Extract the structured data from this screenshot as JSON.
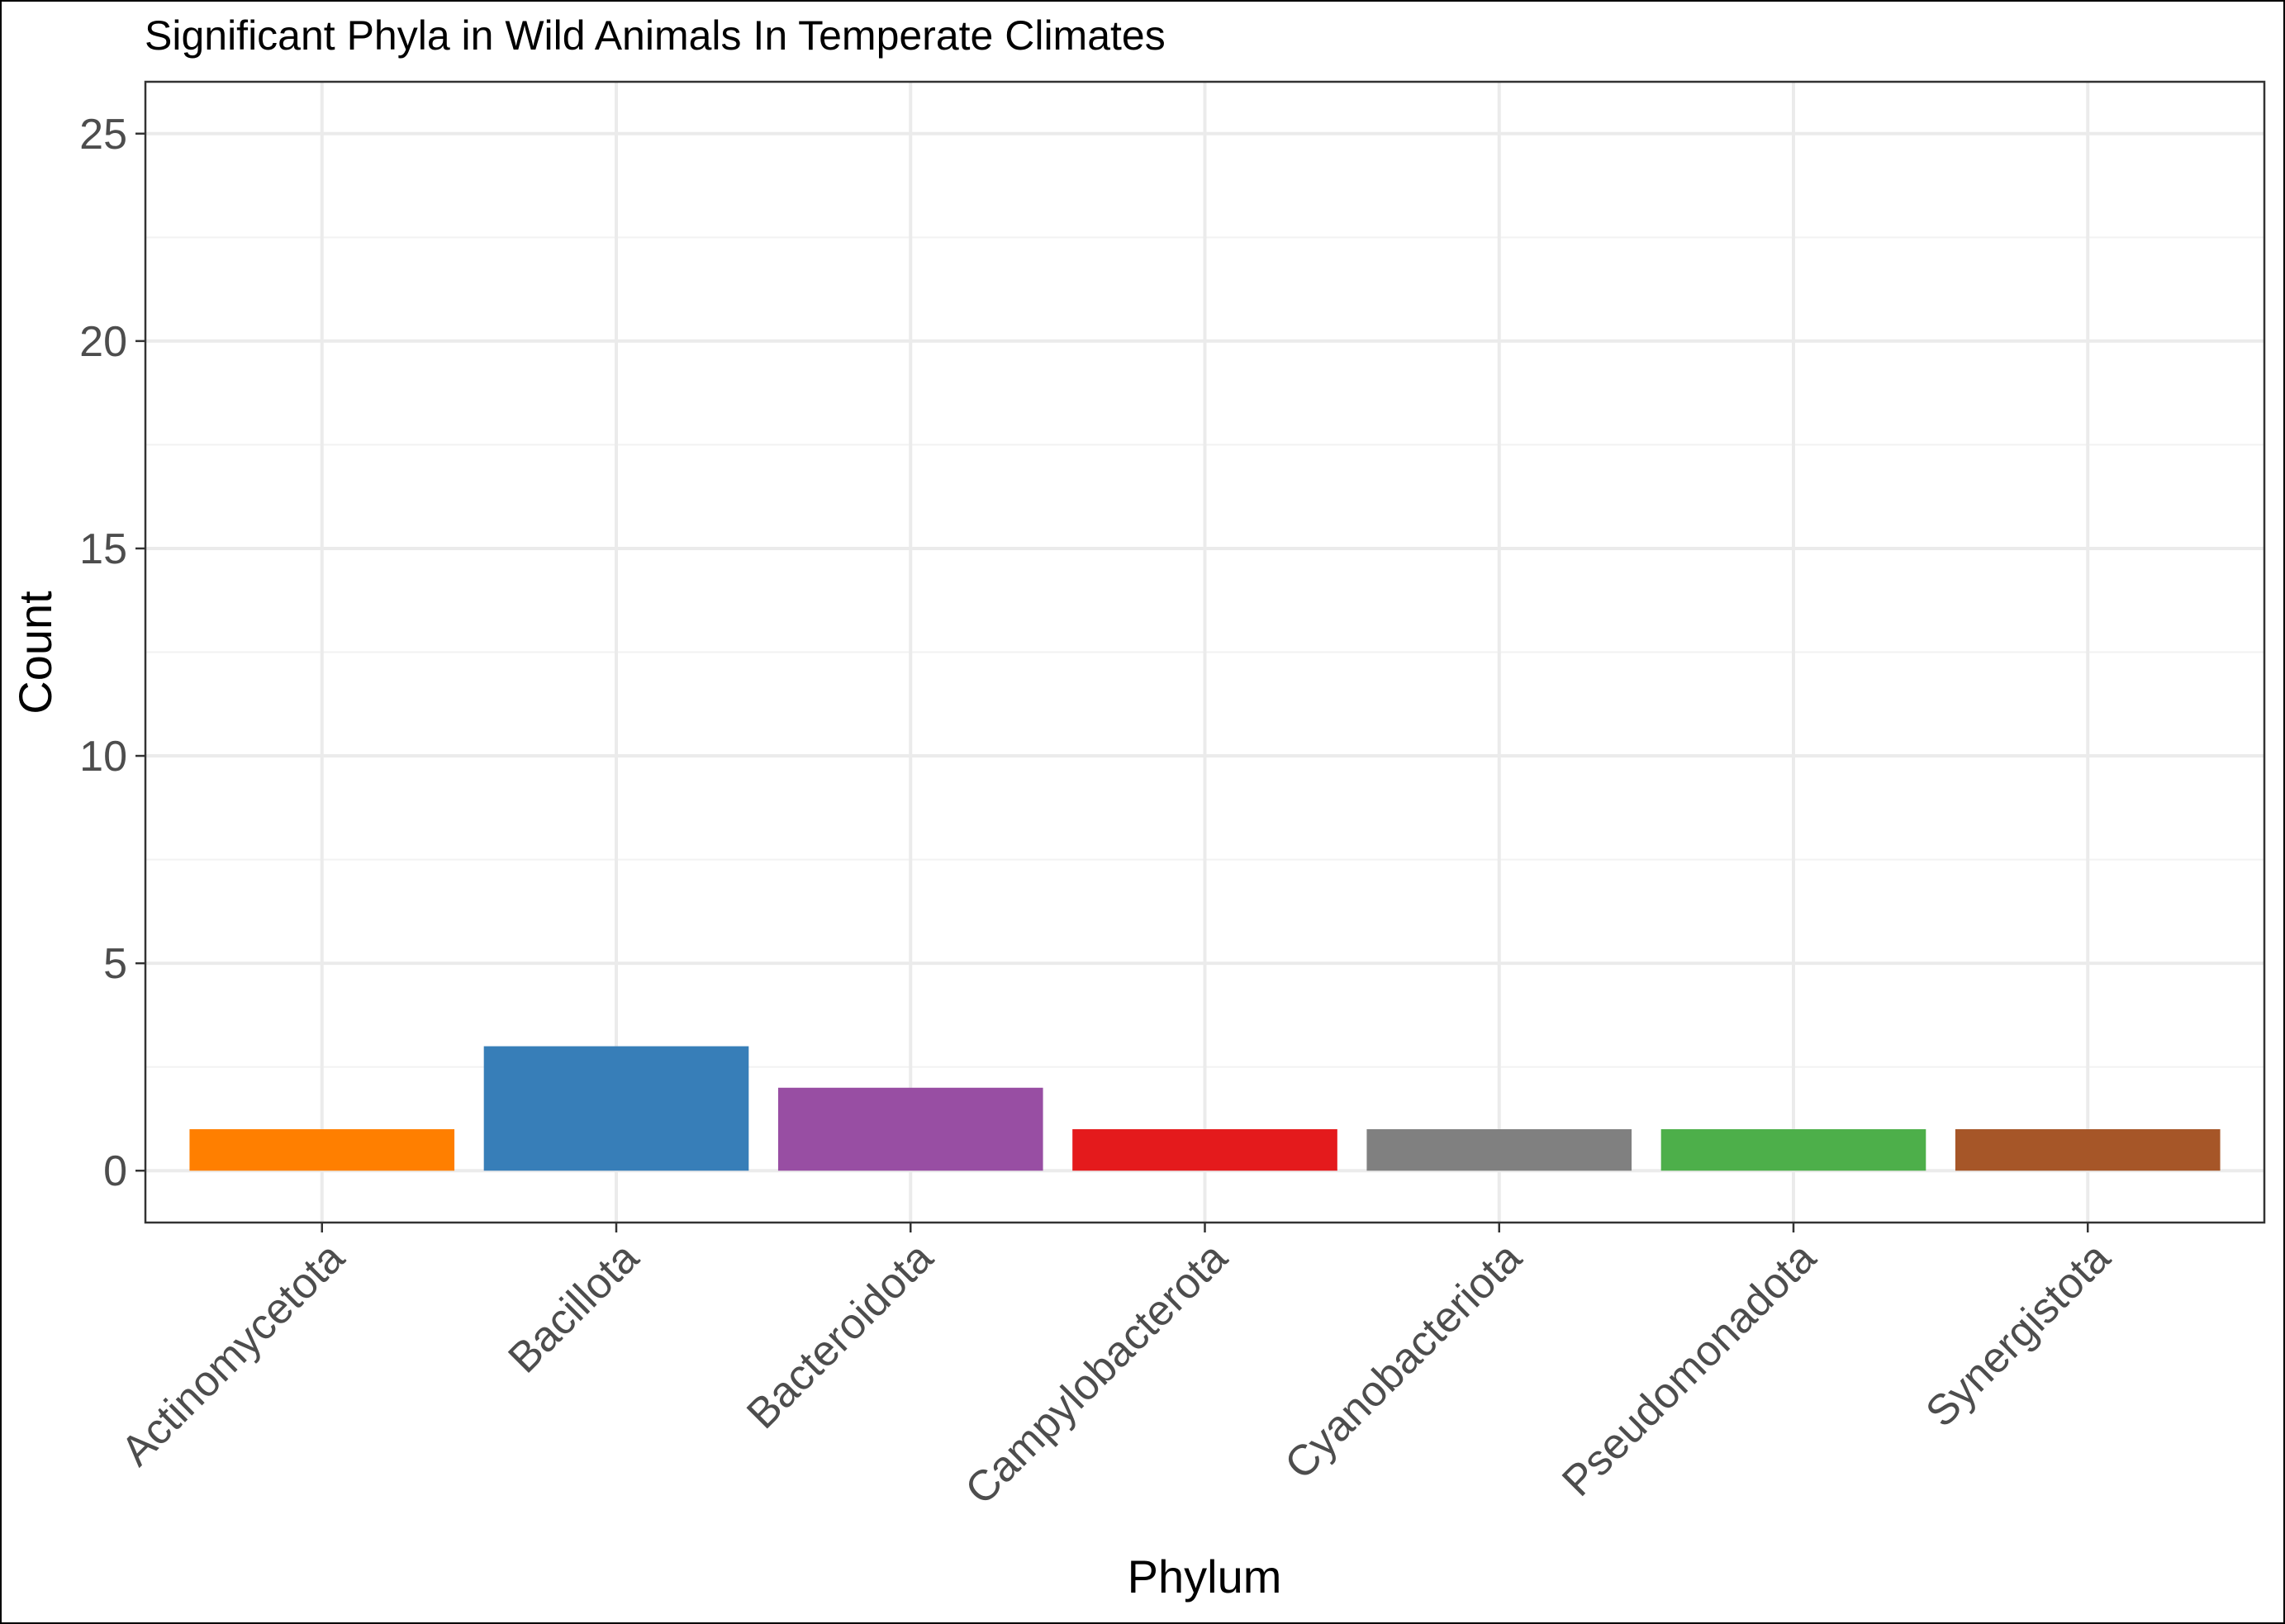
{
  "chart_data": {
    "type": "bar",
    "title": "Significant Phyla in Wild Animals In Temperate Climates",
    "xlabel": "Phylum",
    "ylabel": "Count",
    "categories": [
      "Actinomycetota",
      "Bacillota",
      "Bacteroidota",
      "Campylobacterota",
      "Cyanobacteriota",
      "Pseudomonadota",
      "Synergistota"
    ],
    "values": [
      1,
      3,
      2,
      1,
      1,
      1,
      1
    ],
    "colors": [
      "#ff7f00",
      "#377eb8",
      "#984ea3",
      "#e41a1c",
      "#808080",
      "#4daf4a",
      "#a65628"
    ],
    "ylim": [
      -1.25,
      26.25
    ],
    "yticks": [
      0,
      5,
      10,
      15,
      20,
      25
    ],
    "grid": true,
    "legend": "none"
  }
}
